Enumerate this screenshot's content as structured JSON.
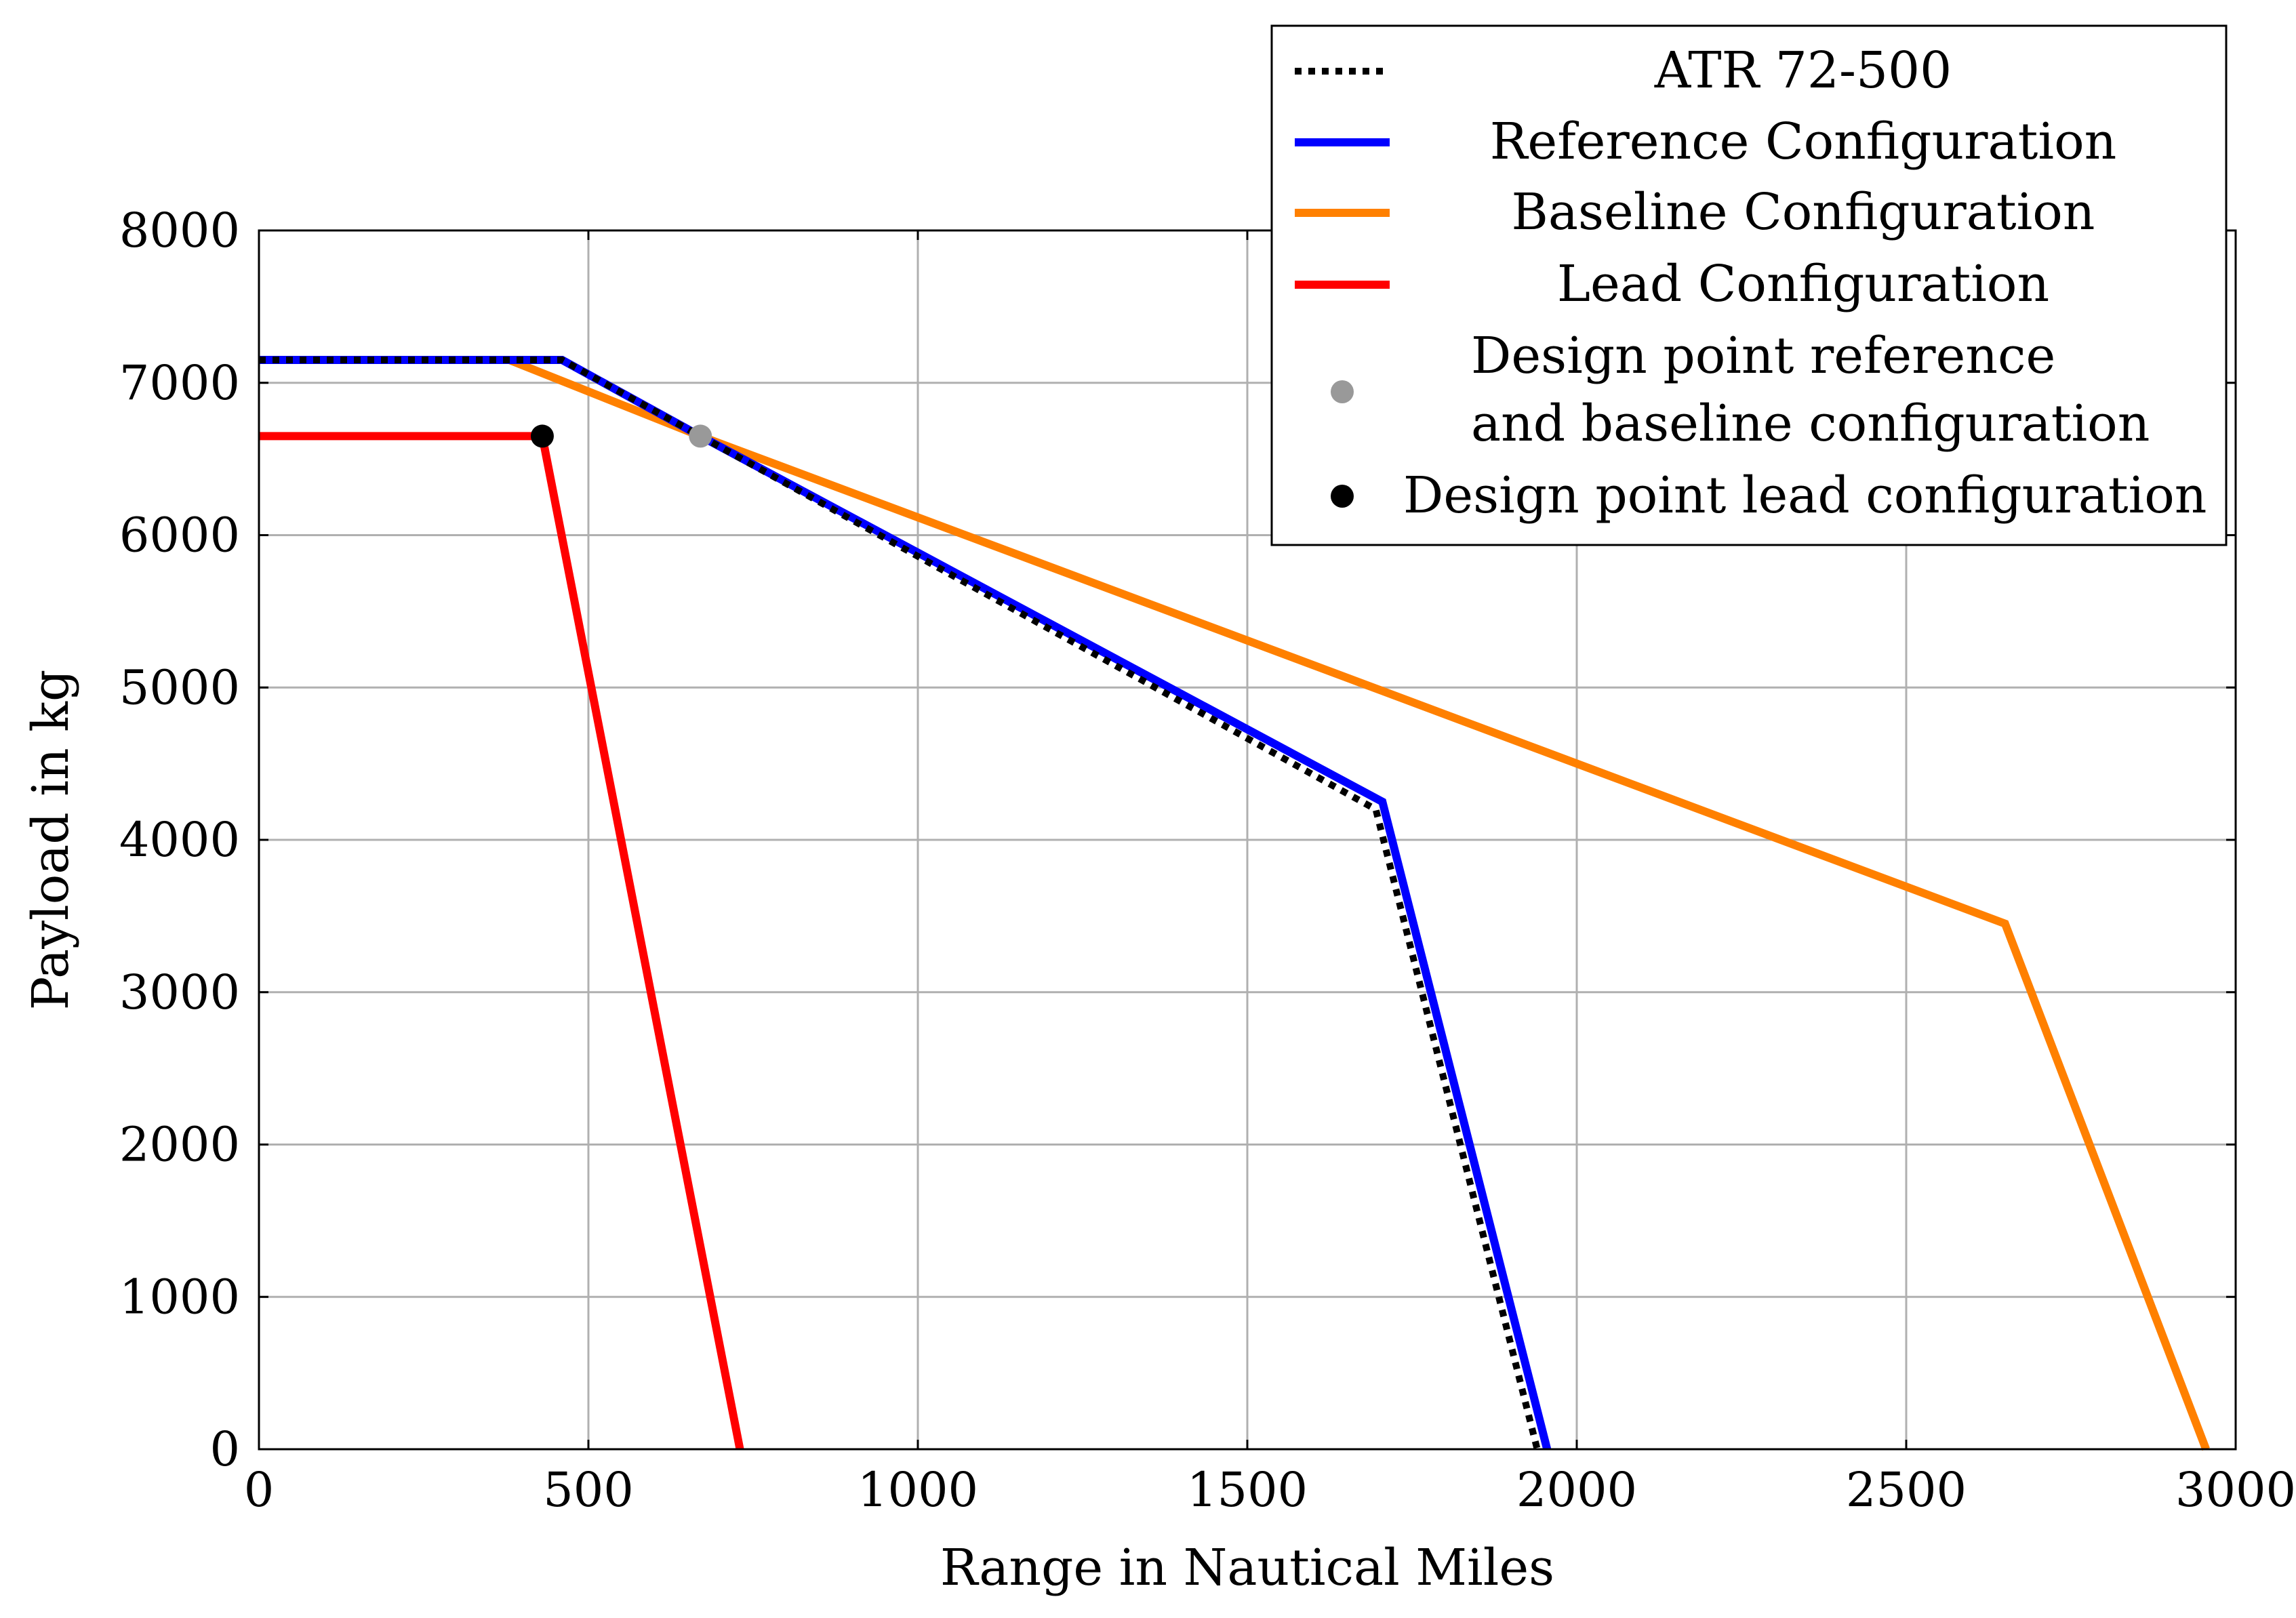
{
  "chart_data": {
    "type": "line",
    "title": "",
    "xlabel": "Range in Nautical Miles",
    "ylabel": "Payload in kg",
    "xlim": [
      0,
      3000
    ],
    "ylim": [
      0,
      8000
    ],
    "xticks": [
      0,
      500,
      1000,
      1500,
      2000,
      2500,
      3000
    ],
    "yticks": [
      0,
      1000,
      2000,
      3000,
      4000,
      5000,
      6000,
      7000,
      8000
    ],
    "xtick_labels": [
      "0",
      "500",
      "1000",
      "1500",
      "2000",
      "2500",
      "3000"
    ],
    "ytick_labels": [
      "0",
      "1000",
      "2000",
      "3000",
      "4000",
      "5000",
      "6000",
      "7000",
      "8000"
    ],
    "grid": true,
    "legend_position": "top-right",
    "series": [
      {
        "name": "ATR 72-500",
        "color": "#000000",
        "style": "dotted",
        "x": [
          0,
          460,
          670,
          1695,
          1940
        ],
        "y": [
          7150,
          7150,
          6650,
          4200,
          0
        ]
      },
      {
        "name": "Reference Configuration",
        "color": "#0000ff",
        "style": "solid",
        "x": [
          0,
          460,
          670,
          1705,
          1955
        ],
        "y": [
          7150,
          7150,
          6650,
          4250,
          0
        ]
      },
      {
        "name": "Baseline Configuration",
        "color": "#ff8000",
        "style": "solid",
        "x": [
          0,
          380,
          670,
          2650,
          2955
        ],
        "y": [
          7150,
          7150,
          6650,
          3450,
          0
        ]
      },
      {
        "name": "Lead Configuration",
        "color": "#ff0000",
        "style": "solid",
        "x": [
          0,
          430,
          730
        ],
        "y": [
          6650,
          6650,
          0
        ]
      }
    ],
    "points": [
      {
        "name": "Design point reference and baseline configuration",
        "legend_lines": [
          "Design point reference",
          "and baseline configuration"
        ],
        "color": "#999999",
        "x": 670,
        "y": 6650
      },
      {
        "name": "Design point lead configuration",
        "legend_lines": [
          "Design point lead configuration"
        ],
        "color": "#000000",
        "x": 430,
        "y": 6650
      }
    ]
  }
}
